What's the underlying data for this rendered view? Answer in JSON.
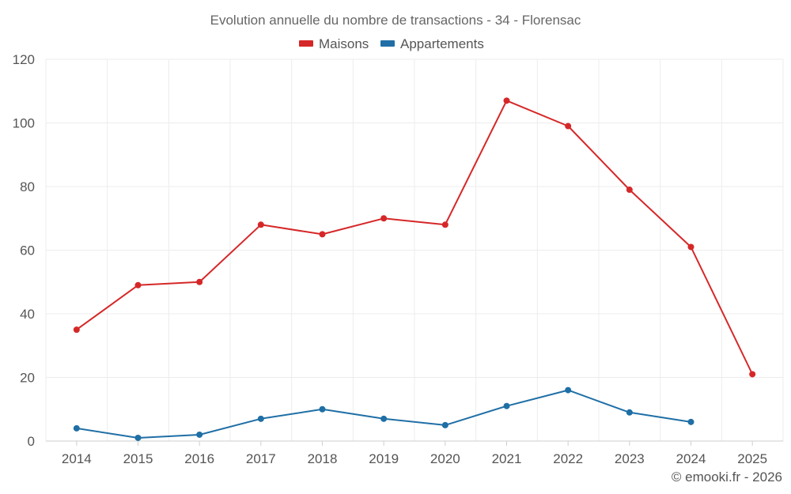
{
  "chart_data": {
    "type": "line",
    "title": "Evolution annuelle du nombre de transactions - 34 - Florensac",
    "categories": [
      "2014",
      "2015",
      "2016",
      "2017",
      "2018",
      "2019",
      "2020",
      "2021",
      "2022",
      "2023",
      "2024",
      "2025"
    ],
    "series": [
      {
        "name": "Maisons",
        "color": "#d62728",
        "values": [
          35,
          49,
          50,
          68,
          65,
          70,
          68,
          107,
          99,
          79,
          61,
          21
        ]
      },
      {
        "name": "Appartements",
        "color": "#1f6fa6",
        "values": [
          4,
          1,
          2,
          7,
          10,
          7,
          5,
          11,
          16,
          9,
          6,
          null
        ]
      }
    ],
    "y_ticks": [
      "0",
      "20",
      "40",
      "60",
      "80",
      "100",
      "120"
    ],
    "ylim": [
      0,
      120
    ],
    "xlabel": "",
    "ylabel": "",
    "grid": true,
    "legend": "top-center"
  },
  "credit": "© emooki.fr - 2026"
}
